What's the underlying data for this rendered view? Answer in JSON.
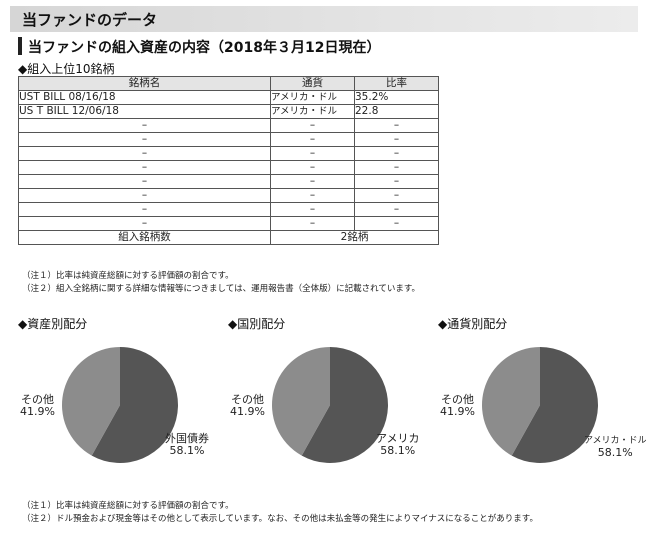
{
  "header": {
    "title": "当ファンドのデータ"
  },
  "section": {
    "title": "当ファンドの組入資産の内容（2018年３月12日現在）"
  },
  "top10": {
    "title": "◆組入上位10銘柄",
    "columns": [
      "銘柄名",
      "通貨",
      "比率"
    ],
    "rows": [
      [
        "UST BILL 08/16/18",
        "アメリカ・ドル",
        "35.2%"
      ],
      [
        "US T BILL 12/06/18",
        "アメリカ・ドル",
        "22.8"
      ],
      [
        "–",
        "–",
        "–"
      ],
      [
        "–",
        "–",
        "–"
      ],
      [
        "–",
        "–",
        "–"
      ],
      [
        "–",
        "–",
        "–"
      ],
      [
        "–",
        "–",
        "–"
      ],
      [
        "–",
        "–",
        "–"
      ],
      [
        "–",
        "–",
        "–"
      ],
      [
        "–",
        "–",
        "–"
      ]
    ],
    "summary_label": "組入銘柄数",
    "summary_value": "2銘柄",
    "notes": [
      "（注１）比率は純資産総額に対する評価額の割合です。",
      "（注２）組入全銘柄に関する詳細な情報等につきましては、運用報告書（全体版）に記載されています。"
    ]
  },
  "allocations": [
    {
      "title": "◆資産別配分",
      "slices": [
        {
          "label": "外国債券",
          "value": "58.1%",
          "pct": 58.1,
          "color": "#555555"
        },
        {
          "label": "その他",
          "value": "41.9%",
          "pct": 41.9,
          "color": "#8c8c8c"
        }
      ]
    },
    {
      "title": "◆国別配分",
      "slices": [
        {
          "label": "アメリカ",
          "value": "58.1%",
          "pct": 58.1,
          "color": "#555555"
        },
        {
          "label": "その他",
          "value": "41.9%",
          "pct": 41.9,
          "color": "#8c8c8c"
        }
      ]
    },
    {
      "title": "◆通貨別配分",
      "slices": [
        {
          "label": "アメリカ・ドル",
          "value": "58.1%",
          "pct": 58.1,
          "color": "#555555"
        },
        {
          "label": "その他",
          "value": "41.9%",
          "pct": 41.9,
          "color": "#8c8c8c"
        }
      ]
    }
  ],
  "bottom_notes": [
    "（注１）比率は純資産総額に対する評価額の割合です。",
    "（注２）ドル預金および現金等はその他として表示しています。なお、その他は未払金等の発生によりマイナスになることがあります。"
  ]
}
